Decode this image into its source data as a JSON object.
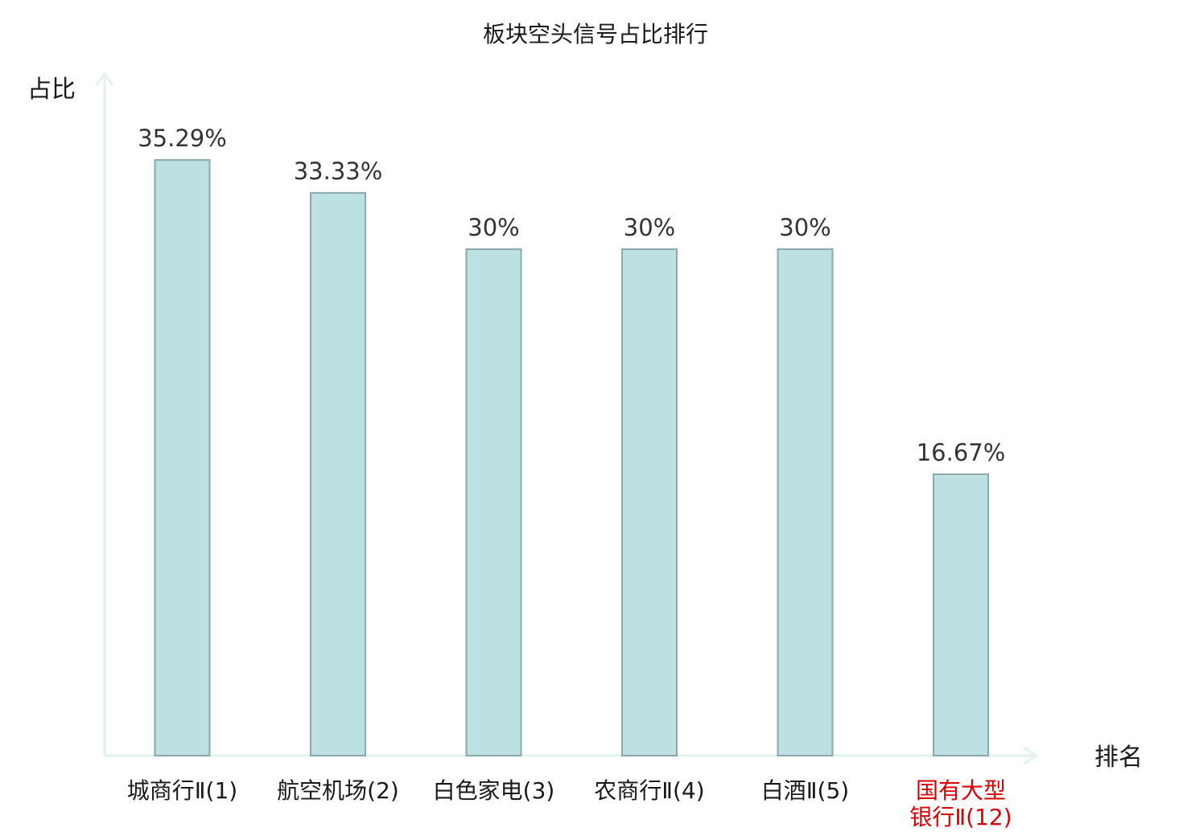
{
  "chart_data": {
    "type": "bar",
    "title": "板块空头信号占比排行",
    "xlabel": "排名",
    "ylabel": "占比",
    "ylim": [
      0,
      40
    ],
    "grid": false,
    "categories": [
      {
        "lines": [
          "城商行Ⅱ(1)"
        ],
        "highlight": false
      },
      {
        "lines": [
          "航空机场(2)"
        ],
        "highlight": false
      },
      {
        "lines": [
          "白色家电(3)"
        ],
        "highlight": false
      },
      {
        "lines": [
          "农商行Ⅱ(4)"
        ],
        "highlight": false
      },
      {
        "lines": [
          "白酒Ⅱ(5)"
        ],
        "highlight": false
      },
      {
        "lines": [
          "国有大型",
          "银行Ⅱ(12)"
        ],
        "highlight": true
      }
    ],
    "values": [
      35.29,
      33.33,
      30,
      30,
      30,
      16.67
    ],
    "value_labels": [
      "35.29%",
      "33.33%",
      "30%",
      "30%",
      "30%",
      "16.67%"
    ],
    "colors": {
      "bar_fill": "#bde1e3",
      "bar_stroke": "#8aa9a9",
      "axis": "#e0f1ee",
      "highlight_text": "#dd0000"
    }
  }
}
